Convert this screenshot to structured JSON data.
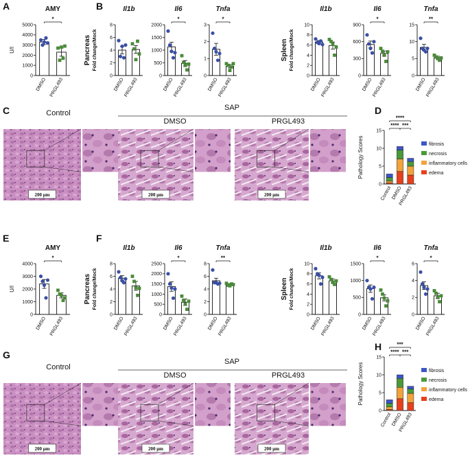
{
  "panel_letters": [
    "A",
    "B",
    "C",
    "D",
    "E",
    "F",
    "G",
    "H"
  ],
  "histology": [
    {
      "control": "Control",
      "sap": "SAP",
      "dmso": "DMSO",
      "prgl": "PRGL493",
      "scale": "200 μm"
    },
    {
      "control": "Control",
      "sap": "SAP",
      "dmso": "DMSO",
      "prgl": "PRGL493",
      "scale": "200 μm"
    }
  ],
  "chart_data": [
    {
      "type": "bar",
      "title": "AMY",
      "ylabel": "U/l",
      "categories": [
        "DMSO",
        "PRGL493"
      ],
      "values": [
        3300,
        2300
      ],
      "errors": [
        250,
        400
      ],
      "points": [
        [
          3500,
          3000,
          3300,
          3700,
          3200
        ],
        [
          2700,
          1500,
          2800,
          1700,
          2900
        ]
      ],
      "point_colors": [
        "#3a4fa5",
        "#4b8a3a"
      ],
      "ylim": [
        0,
        5000
      ],
      "yticks": [
        0,
        1000,
        2000,
        3000,
        4000,
        5000
      ],
      "significance": "*"
    },
    {
      "type": "bar",
      "title": "Il1b",
      "title_italic": true,
      "group_label": "Pancreas",
      "ylabel": "Fold change/Mock",
      "categories": [
        "DMSO",
        "PRGL493"
      ],
      "values": [
        4.0,
        4.1
      ],
      "errors": [
        0.6,
        0.6
      ],
      "points": [
        [
          5.5,
          3,
          4.6,
          2.8,
          4.8
        ],
        [
          5,
          4.2,
          2.5,
          5.4,
          3.4
        ]
      ],
      "point_colors": [
        "#3a4fa5",
        "#4b8a3a"
      ],
      "ylim": [
        0,
        8
      ],
      "yticks": [
        0,
        2,
        4,
        6,
        8
      ]
    },
    {
      "type": "bar",
      "title": "Il6",
      "title_italic": true,
      "categories": [
        "DMSO",
        "PRGL493"
      ],
      "values": [
        1130,
        480
      ],
      "errors": [
        180,
        110
      ],
      "points": [
        [
          1750,
          1200,
          950,
          700,
          900
        ],
        [
          780,
          520,
          400,
          220,
          450
        ]
      ],
      "point_colors": [
        "#3a4fa5",
        "#4b8a3a"
      ],
      "ylim": [
        0,
        2000
      ],
      "yticks": [
        0,
        500,
        1000,
        1500,
        2000
      ],
      "significance": "*"
    },
    {
      "type": "bar",
      "title": "Tnfa",
      "title_italic": true,
      "categories": [
        "DMSO",
        "PRGL493"
      ],
      "values": [
        1.55,
        0.55
      ],
      "errors": [
        0.35,
        0.1
      ],
      "points": [
        [
          2.5,
          1.6,
          1.4,
          0.9,
          1.3
        ],
        [
          0.7,
          0.6,
          0.3,
          0.5,
          0.7
        ]
      ],
      "point_colors": [
        "#3a4fa5",
        "#4b8a3a"
      ],
      "ylim": [
        0,
        3
      ],
      "yticks": [
        0,
        1,
        2,
        3
      ],
      "significance": "*"
    },
    {
      "type": "bar",
      "title": "Il1b",
      "title_italic": true,
      "group_label": "Spleen",
      "ylabel": "Fold change/Mock",
      "categories": [
        "DMSO",
        "PRGL493"
      ],
      "values": [
        6.6,
        5.9
      ],
      "errors": [
        0.3,
        0.7
      ],
      "points": [
        [
          7.2,
          6.5,
          6.3,
          6.8,
          6.1
        ],
        [
          7.1,
          6.7,
          6.2,
          4.0,
          5.6
        ]
      ],
      "point_colors": [
        "#3a4fa5",
        "#4b8a3a"
      ],
      "ylim": [
        0,
        10
      ],
      "yticks": [
        0,
        2,
        4,
        6,
        8,
        10
      ]
    },
    {
      "type": "bar",
      "title": "Il6",
      "title_italic": true,
      "categories": [
        "DMSO",
        "PRGL493"
      ],
      "values": [
        550,
        390
      ],
      "errors": [
        60,
        45
      ],
      "points": [
        [
          720,
          560,
          480,
          400,
          600
        ],
        [
          480,
          430,
          360,
          250,
          420
        ]
      ],
      "point_colors": [
        "#3a4fa5",
        "#4b8a3a"
      ],
      "ylim": [
        0,
        900
      ],
      "yticks": [
        0,
        300,
        600,
        900
      ],
      "significance": "*"
    },
    {
      "type": "bar",
      "title": "Tnfa",
      "title_italic": true,
      "categories": [
        "DMSO",
        "PRGL493"
      ],
      "values": [
        8.3,
        5.3
      ],
      "errors": [
        0.9,
        0.4
      ],
      "points": [
        [
          11,
          8,
          7.5,
          7,
          8
        ],
        [
          6,
          5.5,
          5,
          4.5,
          5.2
        ]
      ],
      "point_colors": [
        "#3a4fa5",
        "#4b8a3a"
      ],
      "ylim": [
        0,
        15
      ],
      "yticks": [
        0,
        5,
        10,
        15
      ],
      "significance": "**"
    },
    {
      "type": "stacked_bar",
      "ylabel": "Pathology Scores",
      "categories": [
        "Control",
        "DMSO",
        "PRGL493"
      ],
      "series": [
        {
          "name": "edema",
          "color": "#e8401c",
          "values": [
            0.3,
            3.5,
            2.5
          ]
        },
        {
          "name": "inflammatory cells",
          "color": "#f2a33a",
          "values": [
            0.5,
            3.5,
            2.5
          ]
        },
        {
          "name": "necrosis",
          "color": "#4a9a3a",
          "values": [
            1,
            2.5,
            1.3
          ]
        },
        {
          "name": "fibrosis",
          "color": "#3d56c8",
          "values": [
            1,
            1,
            0.9
          ]
        }
      ],
      "ylim": [
        0,
        15
      ],
      "yticks": [
        0,
        5,
        10,
        15
      ],
      "significance": [
        "****",
        "****",
        "***"
      ]
    },
    {
      "type": "bar",
      "title": "AMY",
      "ylabel": "U/l",
      "categories": [
        "DMSO",
        "PRGL493"
      ],
      "values": [
        2400,
        1500
      ],
      "errors": [
        350,
        200
      ],
      "points": [
        [
          3000,
          2600,
          2300,
          1300,
          2700
        ],
        [
          1900,
          1600,
          1500,
          1100,
          1300
        ]
      ],
      "point_colors": [
        "#3a4fa5",
        "#4b8a3a"
      ],
      "ylim": [
        0,
        4000
      ],
      "yticks": [
        0,
        1000,
        2000,
        3000,
        4000
      ],
      "significance": "*"
    },
    {
      "type": "bar",
      "title": "Il1b",
      "title_italic": true,
      "group_label": "Pancreas",
      "ylabel": "Fold change/Mock",
      "categories": [
        "DMSO",
        "PRGL493"
      ],
      "values": [
        5.7,
        4.5
      ],
      "errors": [
        0.4,
        0.7
      ],
      "points": [
        [
          6.7,
          5.8,
          5.3,
          5.0,
          5.6
        ],
        [
          6,
          5.2,
          4.2,
          3,
          4.1
        ]
      ],
      "point_colors": [
        "#3a4fa5",
        "#4b8a3a"
      ],
      "ylim": [
        0,
        8
      ],
      "yticks": [
        0,
        2,
        4,
        6,
        8
      ]
    },
    {
      "type": "bar",
      "title": "Il6",
      "title_italic": true,
      "categories": [
        "DMSO",
        "PRGL493"
      ],
      "values": [
        1370,
        600
      ],
      "errors": [
        230,
        160
      ],
      "points": [
        [
          2000,
          1500,
          1300,
          800,
          1250
        ],
        [
          900,
          700,
          500,
          250,
          650
        ]
      ],
      "point_colors": [
        "#3a4fa5",
        "#4b8a3a"
      ],
      "ylim": [
        0,
        2500
      ],
      "yticks": [
        0,
        500,
        1000,
        1500,
        2000,
        2500
      ],
      "significance": "*"
    },
    {
      "type": "bar",
      "title": "Tnfa",
      "title_italic": true,
      "categories": [
        "DMSO",
        "PRGL493"
      ],
      "values": [
        5.3,
        4.7
      ],
      "errors": [
        0.4,
        0.15
      ],
      "points": [
        [
          7,
          5.0,
          5.0,
          4.8,
          4.9
        ],
        [
          4.9,
          4.6,
          4.5,
          4.8,
          4.7
        ]
      ],
      "point_colors": [
        "#3a4fa5",
        "#4b8a3a"
      ],
      "ylim": [
        0,
        8
      ],
      "yticks": [
        0,
        2,
        4,
        6,
        8
      ],
      "significance": "**"
    },
    {
      "type": "bar",
      "title": "Il1b",
      "title_italic": true,
      "group_label": "Spleen",
      "ylabel": "Fold change/Mock",
      "categories": [
        "DMSO",
        "PRGL493"
      ],
      "values": [
        7.6,
        6.6
      ],
      "errors": [
        0.6,
        0.4
      ],
      "points": [
        [
          9,
          8,
          7.7,
          6,
          7.3
        ],
        [
          7.4,
          6.9,
          6.3,
          5.9,
          6.6
        ]
      ],
      "point_colors": [
        "#3a4fa5",
        "#4b8a3a"
      ],
      "ylim": [
        0,
        10
      ],
      "yticks": [
        0,
        2,
        4,
        6,
        8,
        10
      ]
    },
    {
      "type": "bar",
      "title": "Il6",
      "title_italic": true,
      "categories": [
        "DMSO",
        "PRGL493"
      ],
      "values": [
        760,
        490
      ],
      "errors": [
        110,
        90
      ],
      "points": [
        [
          1000,
          800,
          750,
          460,
          800
        ],
        [
          720,
          600,
          480,
          250,
          400
        ]
      ],
      "point_colors": [
        "#3a4fa5",
        "#4b8a3a"
      ],
      "ylim": [
        0,
        1500
      ],
      "yticks": [
        0,
        500,
        1000,
        1500
      ],
      "significance": "*"
    },
    {
      "type": "bar",
      "title": "Tnfa",
      "title_italic": true,
      "categories": [
        "DMSO",
        "PRGL493"
      ],
      "values": [
        3.4,
        2.2
      ],
      "errors": [
        0.45,
        0.3
      ],
      "points": [
        [
          5.0,
          3.6,
          3.2,
          2.4,
          3.0
        ],
        [
          2.8,
          2.5,
          2.0,
          1.5,
          2.2
        ]
      ],
      "point_colors": [
        "#3a4fa5",
        "#4b8a3a"
      ],
      "ylim": [
        0,
        6
      ],
      "yticks": [
        0,
        2,
        4,
        6
      ],
      "significance": "*"
    },
    {
      "type": "stacked_bar",
      "ylabel": "Pathology Scores",
      "categories": [
        "Control",
        "DMSO",
        "PRGL493"
      ],
      "series": [
        {
          "name": "edema",
          "color": "#e8401c",
          "values": [
            0.3,
            3.3,
            2.2
          ]
        },
        {
          "name": "inflammatory cells",
          "color": "#f2a33a",
          "values": [
            0.7,
            3.2,
            2.6
          ]
        },
        {
          "name": "necrosis",
          "color": "#4a9a3a",
          "values": [
            1,
            2.5,
            1.2
          ]
        },
        {
          "name": "fibrosis",
          "color": "#3d56c8",
          "values": [
            1,
            1,
            0.8
          ]
        }
      ],
      "ylim": [
        0,
        15
      ],
      "yticks": [
        0,
        5,
        10,
        15
      ],
      "significance": [
        "***",
        "****",
        "***"
      ]
    }
  ]
}
